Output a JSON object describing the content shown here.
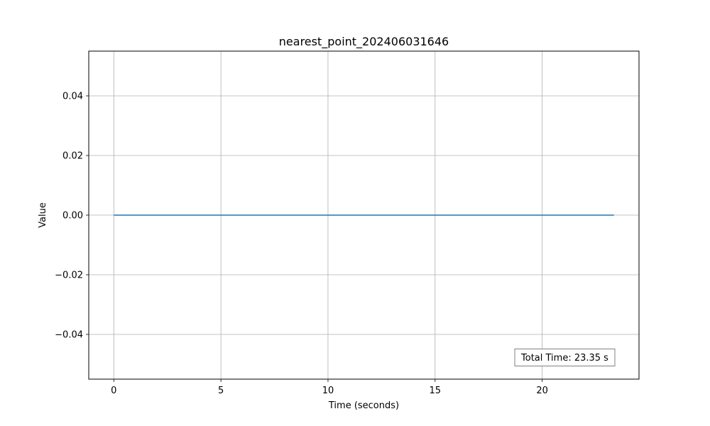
{
  "chart_data": {
    "type": "line",
    "title": "nearest_point_202406031646",
    "xlabel": "Time (seconds)",
    "ylabel": "Value",
    "xlim": [
      -1.17,
      23.35
    ],
    "ylim": [
      -0.055,
      0.055
    ],
    "x_ticks": [
      0,
      5,
      10,
      15,
      20
    ],
    "x_tick_labels": [
      "0",
      "5",
      "10",
      "15",
      "20"
    ],
    "y_ticks": [
      0.04,
      0.02,
      0.0,
      -0.02,
      -0.04
    ],
    "y_tick_labels": [
      "0.04",
      "0.02",
      "0.00",
      "−0.02",
      "−0.04"
    ],
    "grid": true,
    "series": [
      {
        "color": "#1f77b4",
        "x": [
          0,
          23.35
        ],
        "y": [
          0,
          0
        ]
      }
    ],
    "annotation": {
      "text": "Total Time: 23.35 s",
      "placement": "bottom-right"
    }
  }
}
